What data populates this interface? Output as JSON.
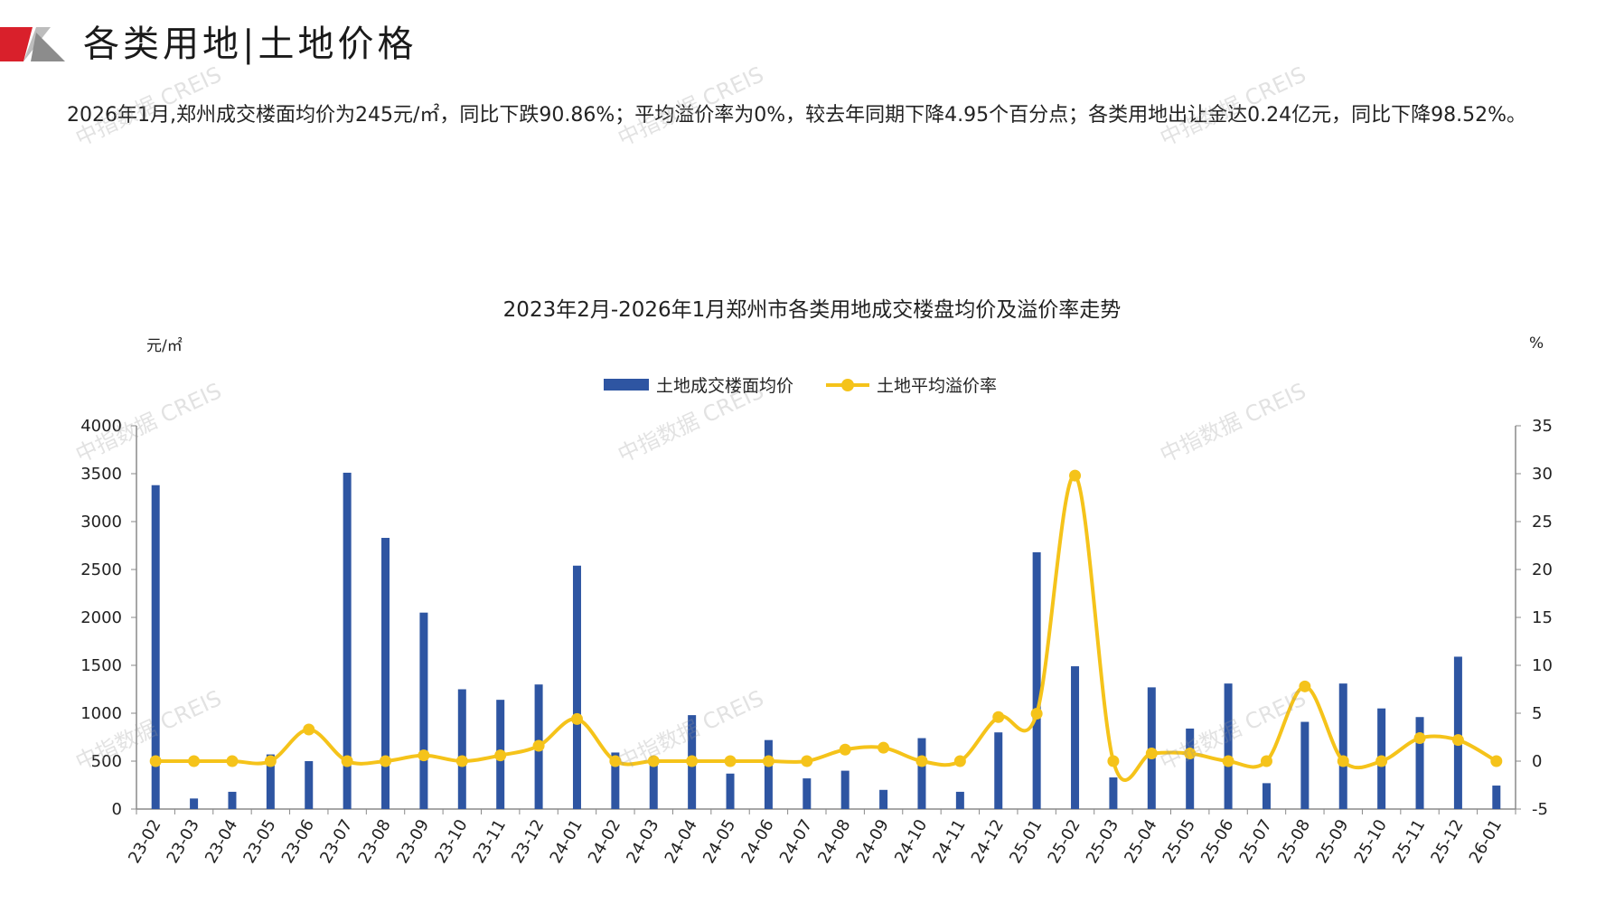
{
  "header": {
    "title": "各类用地|土地价格",
    "summary": "2026年1月,郑州成交楼面均价为245元/㎡，同比下跌90.86%；平均溢价率为0%，较去年同期下降4.95个百分点；各类用地出让金达0.24亿元，同比下降98.52%。"
  },
  "watermark_text": "中指数据 CREIS",
  "colors": {
    "bar": "#2e55a2",
    "line": "#f5c31a",
    "logo_red": "#d9202b",
    "logo_gray": "#9a9a9a"
  },
  "chart_data": {
    "type": "bar",
    "title": "2023年2月-2026年1月郑州市各类用地成交楼盘均价及溢价率走势",
    "y_left_unit": "元/㎡",
    "y_right_unit": "%",
    "ylim_left": [
      0,
      4000
    ],
    "ylim_right": [
      -5,
      35
    ],
    "y_left_ticks": [
      0,
      500,
      1000,
      1500,
      2000,
      2500,
      3000,
      3500,
      4000
    ],
    "y_right_ticks": [
      -5,
      0,
      5,
      10,
      15,
      20,
      25,
      30,
      35
    ],
    "legend_position": "top",
    "categories": [
      "23-02",
      "23-03",
      "23-04",
      "23-05",
      "23-06",
      "23-07",
      "23-08",
      "23-09",
      "23-10",
      "23-11",
      "23-12",
      "24-01",
      "24-02",
      "24-03",
      "24-04",
      "24-05",
      "24-06",
      "24-07",
      "24-08",
      "24-09",
      "24-10",
      "24-11",
      "24-12",
      "25-01",
      "25-02",
      "25-03",
      "25-04",
      "25-05",
      "25-06",
      "25-07",
      "25-08",
      "25-09",
      "25-10",
      "25-11",
      "25-12",
      "26-01"
    ],
    "series": [
      {
        "name": "土地成交楼面均价",
        "type": "bar",
        "axis": "left",
        "values": [
          3380,
          110,
          180,
          570,
          500,
          3510,
          2830,
          2050,
          1250,
          1140,
          1300,
          2540,
          590,
          500,
          980,
          370,
          720,
          320,
          400,
          200,
          740,
          180,
          800,
          2680,
          1490,
          330,
          1270,
          840,
          1310,
          270,
          910,
          1310,
          1050,
          960,
          1590,
          245
        ]
      },
      {
        "name": "土地平均溢价率",
        "type": "line",
        "axis": "right",
        "values": [
          0,
          0,
          0,
          0,
          3.3,
          0,
          0,
          0.6,
          0,
          0.6,
          1.6,
          4.4,
          0,
          0,
          0,
          0,
          0,
          0,
          1.2,
          1.4,
          0,
          0,
          4.6,
          4.95,
          29.8,
          0,
          0.8,
          0.8,
          0,
          0,
          7.8,
          0,
          0,
          2.4,
          2.2,
          0
        ]
      }
    ]
  }
}
